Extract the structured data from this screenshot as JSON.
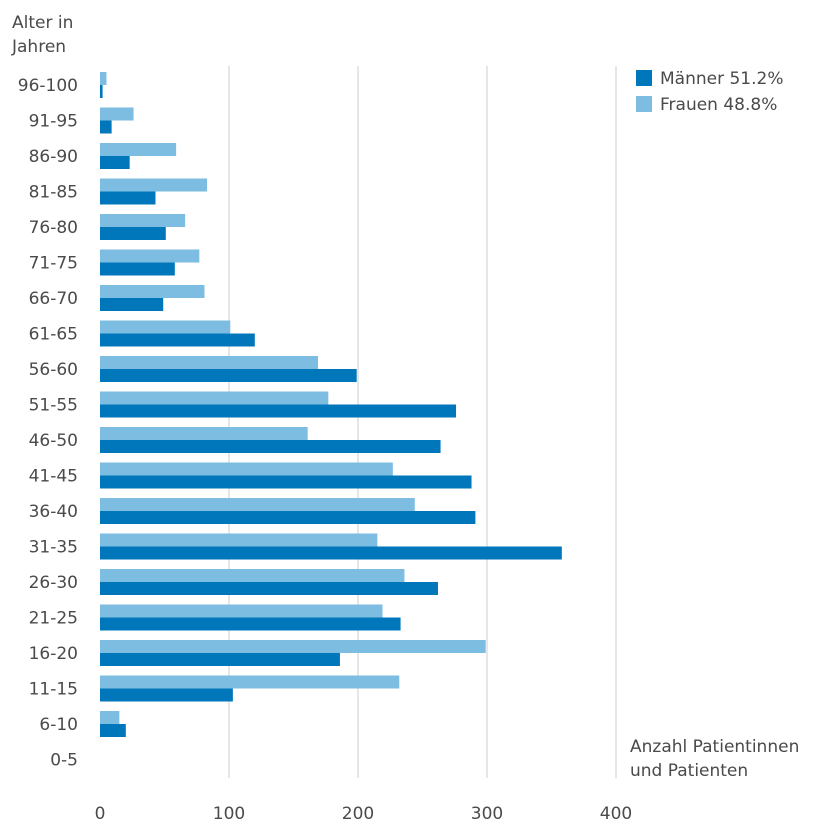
{
  "chart_data": {
    "type": "bar",
    "orientation": "horizontal",
    "ylabel_lines": [
      "Alter in",
      "Jahren"
    ],
    "xlabel_lines": [
      "Anzahl Patientinnen",
      "und Patienten"
    ],
    "categories": [
      "96-100",
      "91-95",
      "86-90",
      "81-85",
      "76-80",
      "71-75",
      "66-70",
      "61-65",
      "56-60",
      "51-55",
      "46-50",
      "41-45",
      "36-40",
      "31-35",
      "26-30",
      "21-25",
      "16-20",
      "11-15",
      "6-10",
      "0-5"
    ],
    "series": [
      {
        "name": "Frauen 48.8%",
        "color": "#7ebde2",
        "values": [
          5,
          26,
          59,
          83,
          66,
          77,
          81,
          101,
          169,
          177,
          161,
          227,
          244,
          215,
          236,
          219,
          299,
          232,
          15,
          0
        ]
      },
      {
        "name": "Männer 51.2%",
        "color": "#0077bb",
        "values": [
          2,
          9,
          23,
          43,
          51,
          58,
          49,
          120,
          199,
          276,
          264,
          288,
          291,
          358,
          262,
          233,
          186,
          103,
          20,
          0
        ]
      }
    ],
    "legend_order": [
      1,
      0
    ],
    "legend_position": "top-right",
    "xlim": [
      0,
      400
    ],
    "xticks": [
      0,
      100,
      200,
      300,
      400
    ],
    "grid": "vertical"
  }
}
